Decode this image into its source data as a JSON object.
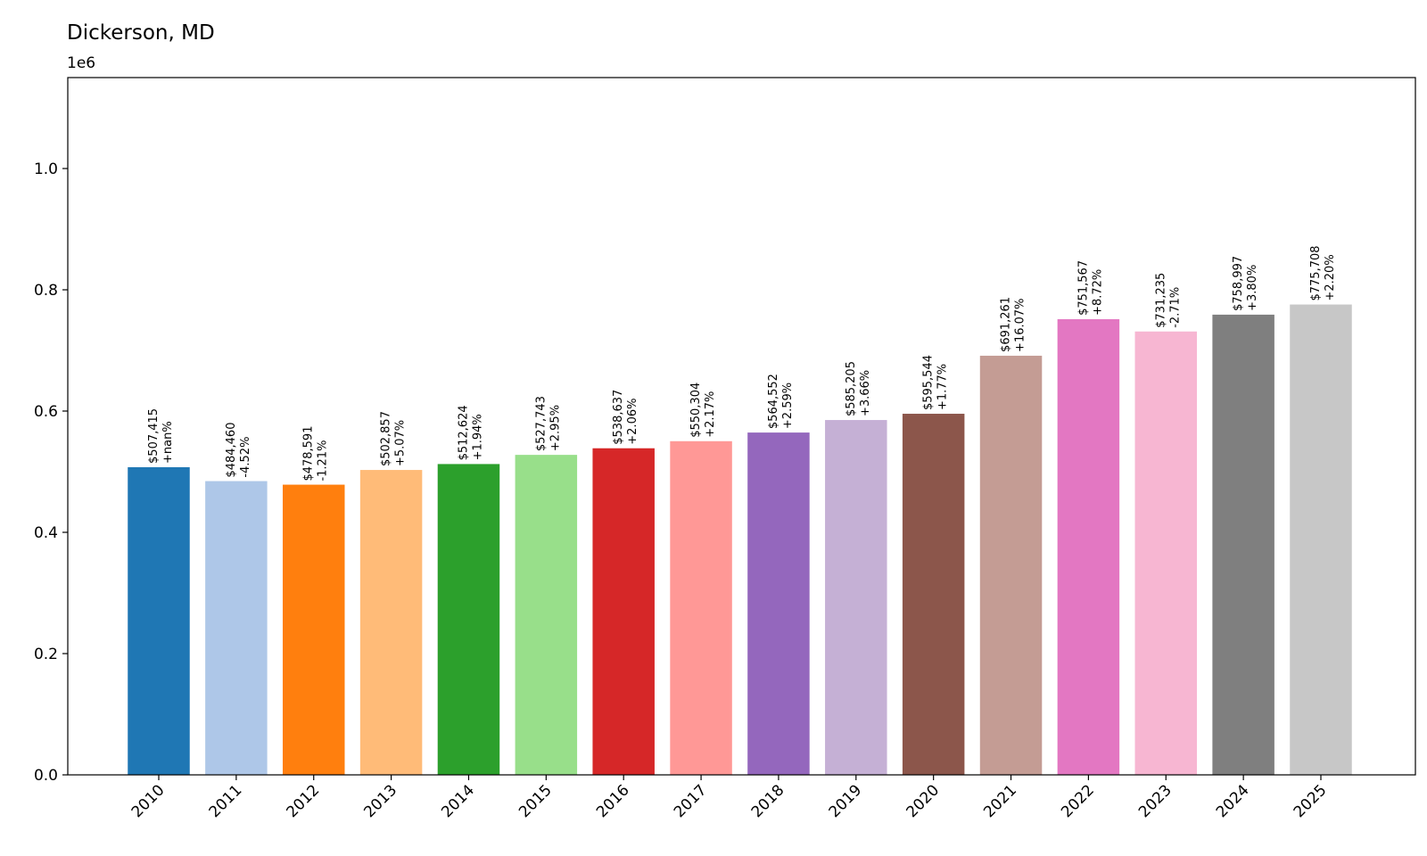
{
  "chart_data": {
    "type": "bar",
    "title": "Dickerson, MD",
    "y_offset_label": "1e6",
    "xlabel": "",
    "ylabel": "",
    "ylim": [
      0,
      1150000
    ],
    "y_ticks": [
      0,
      200000,
      400000,
      600000,
      800000,
      1000000
    ],
    "y_tick_labels": [
      "0.0",
      "0.2",
      "0.4",
      "0.6",
      "0.8",
      "1.0"
    ],
    "grid": false,
    "categories": [
      "2010",
      "2011",
      "2012",
      "2013",
      "2014",
      "2015",
      "2016",
      "2017",
      "2018",
      "2019",
      "2020",
      "2021",
      "2022",
      "2023",
      "2024",
      "2025"
    ],
    "values": [
      507415,
      484460,
      478591,
      502857,
      512624,
      527743,
      538637,
      550304,
      564552,
      585205,
      595544,
      691261,
      751567,
      731235,
      758997,
      775708
    ],
    "value_labels": [
      "$507,415",
      "$484,460",
      "$478,591",
      "$502,857",
      "$512,624",
      "$527,743",
      "$538,637",
      "$550,304",
      "$564,552",
      "$585,205",
      "$595,544",
      "$691,261",
      "$751,567",
      "$731,235",
      "$758,997",
      "$775,708"
    ],
    "change_labels": [
      "+nan%",
      "-4.52%",
      "-1.21%",
      "+5.07%",
      "+1.94%",
      "+2.95%",
      "+2.06%",
      "+2.17%",
      "+2.59%",
      "+3.66%",
      "+1.77%",
      "+16.07%",
      "+8.72%",
      "-2.71%",
      "+3.80%",
      "+2.20%"
    ],
    "colors": [
      "#1f77b4",
      "#aec7e8",
      "#ff7f0e",
      "#ffbb78",
      "#2ca02c",
      "#98df8a",
      "#d62728",
      "#ff9896",
      "#9467bd",
      "#c5b0d5",
      "#8c564b",
      "#c49c94",
      "#e377c2",
      "#f7b6d2",
      "#7f7f7f",
      "#c7c7c7"
    ]
  }
}
